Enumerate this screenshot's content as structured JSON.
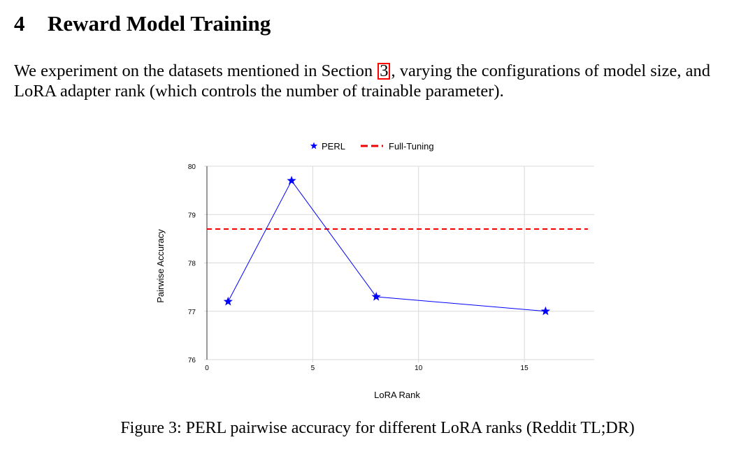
{
  "section": {
    "number": "4",
    "title": "Reward Model Training"
  },
  "paragraph": {
    "line1_before": "We experiment on the datasets mentioned in Section",
    "ref": "3",
    "line1_after": ", varying the configurations of model size, and",
    "line2": "LoRA adapter rank (which controls the number of trainable parameter)."
  },
  "colors": {
    "series": "#0000ff",
    "reference": "#ee0000",
    "grid": "#d9d9d9",
    "axis": "#333333",
    "ref_box": "#ff0000"
  },
  "chart_data": {
    "type": "line",
    "title": "",
    "xlabel": "LoRA Rank",
    "ylabel": "Pairwise Accuracy",
    "xlim": [
      0,
      18.3
    ],
    "ylim": [
      76,
      80
    ],
    "x_ticks": [
      0,
      5,
      10,
      15
    ],
    "y_ticks": [
      76,
      77,
      78,
      79,
      80
    ],
    "grid": true,
    "legend_position": "top-center",
    "series": [
      {
        "name": "PERL",
        "marker": "star",
        "x": [
          1,
          4,
          8,
          16
        ],
        "y": [
          77.2,
          79.7,
          77.3,
          77.0
        ]
      }
    ],
    "reference_lines": [
      {
        "name": "Full-Tuning",
        "style": "dashed",
        "y": 78.7,
        "x_range": [
          0,
          18
        ]
      }
    ]
  },
  "caption": "Figure 3: PERL pairwise accuracy for different LoRA ranks (Reddit TL;DR)"
}
